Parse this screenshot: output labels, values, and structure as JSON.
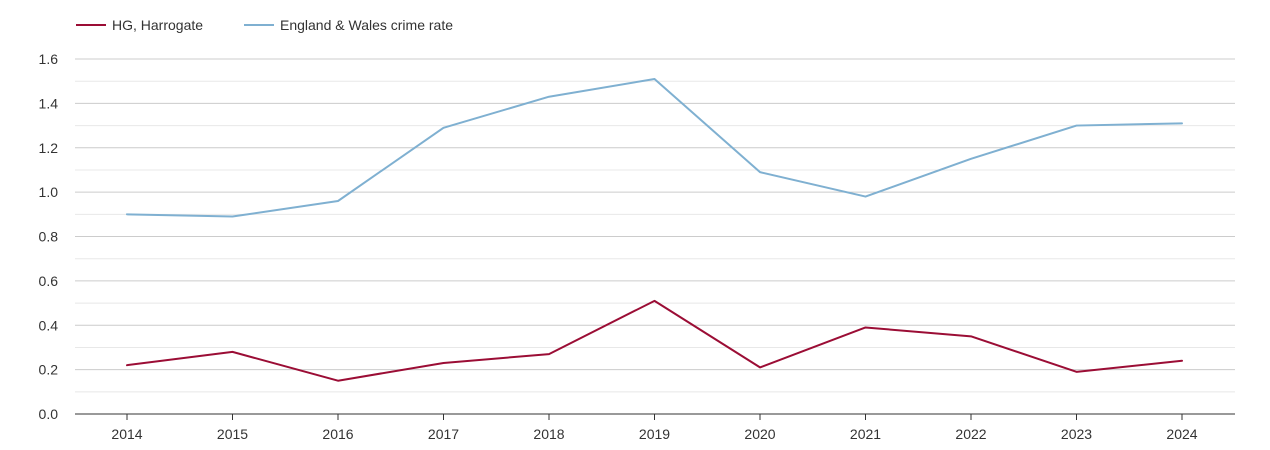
{
  "chart_data": {
    "type": "line",
    "title": "",
    "xlabel": "",
    "ylabel": "",
    "x": [
      "2014",
      "2015",
      "2016",
      "2017",
      "2018",
      "2019",
      "2020",
      "2021",
      "2022",
      "2023",
      "2024"
    ],
    "ylim": [
      0,
      1.6
    ],
    "yticks": [
      "0.0",
      "0.2",
      "0.4",
      "0.6",
      "0.8",
      "1.0",
      "1.2",
      "1.4",
      "1.6"
    ],
    "grid": true,
    "legend_position": "top-left",
    "series": [
      {
        "name": "HG, Harrogate",
        "color": "#9b0d35",
        "values": [
          0.22,
          0.28,
          0.15,
          0.23,
          0.27,
          0.51,
          0.21,
          0.39,
          0.35,
          0.19,
          0.24
        ]
      },
      {
        "name": "England & Wales crime rate",
        "color": "#7fb0d1",
        "values": [
          0.9,
          0.89,
          0.96,
          1.29,
          1.43,
          1.51,
          1.09,
          0.98,
          1.15,
          1.3,
          1.31
        ]
      }
    ]
  }
}
